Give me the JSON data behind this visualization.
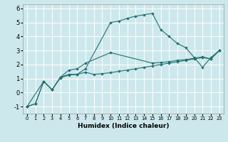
{
  "xlabel": "Humidex (Indice chaleur)",
  "bg_color": "#cde8ec",
  "grid_color": "#ffffff",
  "line_color": "#1f7070",
  "xlim": [
    -0.5,
    23.5
  ],
  "ylim": [
    -1.5,
    6.3
  ],
  "xticks": [
    0,
    1,
    2,
    3,
    4,
    5,
    6,
    7,
    8,
    9,
    10,
    11,
    12,
    13,
    14,
    15,
    16,
    17,
    18,
    19,
    20,
    21,
    22,
    23
  ],
  "yticks": [
    -1,
    0,
    1,
    2,
    3,
    4,
    5,
    6
  ],
  "line1_x": [
    0,
    1,
    2,
    3,
    4,
    5,
    6,
    7,
    10,
    11,
    12,
    13,
    14,
    15,
    16,
    17,
    18,
    19,
    20,
    21,
    22,
    23
  ],
  "line1_y": [
    -1,
    -0.8,
    0.8,
    0.2,
    1.1,
    1.3,
    1.3,
    1.7,
    5.0,
    5.1,
    5.3,
    5.45,
    5.55,
    5.65,
    4.5,
    4.0,
    3.5,
    3.2,
    2.5,
    1.8,
    2.5,
    3.0
  ],
  "line2_x": [
    0,
    2,
    3,
    4,
    5,
    6,
    7,
    10,
    15,
    16,
    17,
    18,
    19,
    20,
    21,
    22,
    23
  ],
  "line2_y": [
    -1,
    0.8,
    0.2,
    1.1,
    1.6,
    1.7,
    2.1,
    2.85,
    2.1,
    2.15,
    2.2,
    2.3,
    2.35,
    2.45,
    2.55,
    2.4,
    3.0
  ],
  "line3_x": [
    0,
    1,
    2,
    3,
    4,
    5,
    6,
    7,
    8,
    9,
    10,
    11,
    12,
    13,
    14,
    15,
    16,
    17,
    18,
    19,
    20,
    21,
    22,
    23
  ],
  "line3_y": [
    -1,
    -0.8,
    0.8,
    0.2,
    1.05,
    1.25,
    1.3,
    1.45,
    1.3,
    1.35,
    1.42,
    1.52,
    1.6,
    1.7,
    1.8,
    1.9,
    2.0,
    2.1,
    2.2,
    2.3,
    2.4,
    2.5,
    2.4,
    3.0
  ]
}
